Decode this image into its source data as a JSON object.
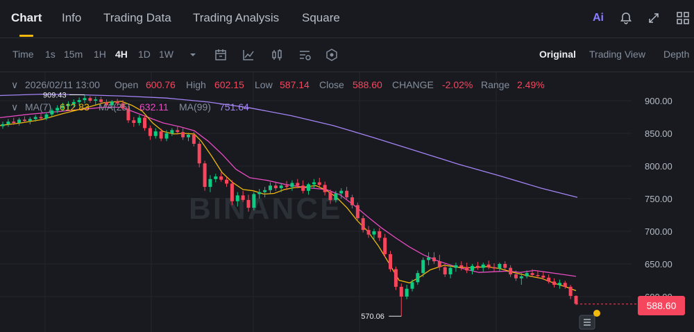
{
  "header": {
    "tabs": [
      {
        "label": "Chart"
      },
      {
        "label": "Info"
      },
      {
        "label": "Trading Data"
      },
      {
        "label": "Trading Analysis"
      },
      {
        "label": "Square"
      }
    ],
    "ai_label": "Ai",
    "icons": [
      "bell-icon",
      "expand-icon",
      "grid-layout-icon"
    ]
  },
  "toolbar": {
    "timeframes": [
      "Time",
      "1s",
      "15m",
      "1H",
      "4H",
      "1D",
      "1W"
    ],
    "active_timeframe": "4H",
    "tools": [
      "chevron-down-icon",
      "calendar-icon",
      "indicator-icon",
      "candle-type-icon",
      "settings-icon",
      "hexagon-icon"
    ],
    "views": [
      "Original",
      "Trading View",
      "Depth"
    ],
    "active_view": "Original"
  },
  "ohlc": {
    "datetime": "2026/02/11 13:00",
    "open_label": "Open",
    "open": "600.76",
    "high_label": "High",
    "high": "602.15",
    "low_label": "Low",
    "low": "587.14",
    "close_label": "Close",
    "close": "588.60",
    "change_label": "CHANGE",
    "change": "-2.02%",
    "range_label": "Range",
    "range": "2.49%"
  },
  "ma": {
    "ma7_label": "MA(7)",
    "ma7": "612.83",
    "ma25_label": "MA(25)",
    "ma25": "632.11",
    "ma99_label": "MA(99)",
    "ma99": "751.64"
  },
  "watermark": "BINANCE",
  "colors": {
    "up": "#0ecb81",
    "down": "#f6465d",
    "ma7": "#f0b90b",
    "ma25": "#e94bc1",
    "ma99": "#a584f5",
    "accent": "#f0b90b"
  },
  "chart_data": {
    "type": "candlestick",
    "y_ticks": [
      "900.00",
      "850.00",
      "800.00",
      "750.00",
      "700.00",
      "650.00",
      "600.00"
    ],
    "ylim": [
      560,
      920
    ],
    "current_price": "588.60",
    "high_annotation": "909.43",
    "low_annotation": "570.06",
    "candles": [
      [
        861,
        868,
        857,
        864
      ],
      [
        864,
        872,
        860,
        868
      ],
      [
        868,
        874,
        863,
        866
      ],
      [
        866,
        874,
        862,
        871
      ],
      [
        871,
        876,
        866,
        869
      ],
      [
        869,
        875,
        864,
        872
      ],
      [
        872,
        878,
        868,
        875
      ],
      [
        875,
        880,
        870,
        873
      ],
      [
        873,
        882,
        870,
        879
      ],
      [
        879,
        888,
        876,
        885
      ],
      [
        885,
        893,
        881,
        889
      ],
      [
        889,
        897,
        884,
        892
      ],
      [
        892,
        899,
        887,
        895
      ],
      [
        895,
        902,
        890,
        898
      ],
      [
        898,
        905,
        893,
        901
      ],
      [
        901,
        909,
        896,
        904
      ],
      [
        904,
        907,
        897,
        900
      ],
      [
        900,
        906,
        894,
        902
      ],
      [
        902,
        906,
        895,
        898
      ],
      [
        898,
        902,
        890,
        893
      ],
      [
        893,
        901,
        890,
        899
      ],
      [
        899,
        903,
        892,
        896
      ],
      [
        896,
        901,
        885,
        888
      ],
      [
        888,
        892,
        866,
        870
      ],
      [
        870,
        875,
        860,
        866
      ],
      [
        866,
        878,
        862,
        874
      ],
      [
        874,
        877,
        854,
        858
      ],
      [
        858,
        862,
        840,
        846
      ],
      [
        846,
        858,
        842,
        853
      ],
      [
        853,
        857,
        838,
        842
      ],
      [
        842,
        855,
        838,
        850
      ],
      [
        850,
        858,
        846,
        855
      ],
      [
        855,
        860,
        848,
        852
      ],
      [
        852,
        858,
        840,
        844
      ],
      [
        844,
        851,
        838,
        848
      ],
      [
        848,
        852,
        830,
        834
      ],
      [
        834,
        838,
        798,
        804
      ],
      [
        804,
        808,
        762,
        768
      ],
      [
        768,
        786,
        760,
        780
      ],
      [
        780,
        788,
        775,
        784
      ],
      [
        784,
        790,
        776,
        779
      ],
      [
        779,
        783,
        768,
        773
      ],
      [
        773,
        778,
        740,
        746
      ],
      [
        746,
        760,
        738,
        755
      ],
      [
        755,
        762,
        745,
        748
      ],
      [
        748,
        756,
        730,
        736
      ],
      [
        736,
        760,
        732,
        757
      ],
      [
        757,
        765,
        750,
        760
      ],
      [
        760,
        768,
        752,
        763
      ],
      [
        763,
        775,
        758,
        770
      ],
      [
        770,
        776,
        762,
        766
      ],
      [
        766,
        774,
        760,
        770
      ],
      [
        770,
        777,
        763,
        768
      ],
      [
        768,
        778,
        762,
        774
      ],
      [
        774,
        780,
        766,
        770
      ],
      [
        770,
        778,
        758,
        762
      ],
      [
        762,
        774,
        756,
        772
      ],
      [
        772,
        780,
        766,
        775
      ],
      [
        775,
        782,
        768,
        771
      ],
      [
        771,
        776,
        755,
        760
      ],
      [
        760,
        764,
        742,
        748
      ],
      [
        748,
        762,
        744,
        758
      ],
      [
        758,
        766,
        750,
        762
      ],
      [
        762,
        768,
        748,
        752
      ],
      [
        752,
        756,
        735,
        740
      ],
      [
        740,
        744,
        715,
        720
      ],
      [
        720,
        724,
        698,
        702
      ],
      [
        702,
        708,
        690,
        695
      ],
      [
        695,
        704,
        688,
        700
      ],
      [
        700,
        705,
        685,
        690
      ],
      [
        690,
        696,
        660,
        665
      ],
      [
        665,
        670,
        638,
        642
      ],
      [
        642,
        646,
        610,
        615
      ],
      [
        615,
        620,
        570,
        600
      ],
      [
        600,
        618,
        596,
        612
      ],
      [
        612,
        626,
        608,
        622
      ],
      [
        622,
        640,
        618,
        636
      ],
      [
        636,
        660,
        630,
        656
      ],
      [
        656,
        668,
        648,
        660
      ],
      [
        660,
        668,
        650,
        654
      ],
      [
        654,
        664,
        640,
        645
      ],
      [
        645,
        650,
        630,
        634
      ],
      [
        634,
        648,
        628,
        644
      ],
      [
        644,
        652,
        638,
        648
      ],
      [
        648,
        654,
        640,
        645
      ],
      [
        645,
        652,
        636,
        640
      ],
      [
        640,
        650,
        634,
        647
      ],
      [
        647,
        653,
        641,
        644
      ],
      [
        644,
        652,
        638,
        649
      ],
      [
        649,
        655,
        642,
        645
      ],
      [
        645,
        651,
        638,
        643
      ],
      [
        643,
        652,
        638,
        650
      ],
      [
        650,
        654,
        640,
        644
      ],
      [
        644,
        648,
        630,
        634
      ],
      [
        634,
        640,
        624,
        628
      ],
      [
        628,
        636,
        618,
        631
      ],
      [
        631,
        640,
        628,
        636
      ],
      [
        636,
        642,
        630,
        633
      ],
      [
        633,
        640,
        628,
        632
      ],
      [
        632,
        638,
        626,
        629
      ],
      [
        629,
        634,
        620,
        623
      ],
      [
        623,
        628,
        614,
        618
      ],
      [
        618,
        626,
        612,
        621
      ],
      [
        621,
        624,
        612,
        615
      ],
      [
        615,
        618,
        596,
        601
      ],
      [
        601,
        602,
        587,
        589
      ]
    ],
    "ma7": [
      [
        0,
        862
      ],
      [
        30,
        866
      ],
      [
        60,
        871
      ],
      [
        90,
        880
      ],
      [
        120,
        888
      ],
      [
        150,
        897
      ],
      [
        175,
        899
      ],
      [
        190,
        893
      ],
      [
        205,
        884
      ],
      [
        220,
        866
      ],
      [
        235,
        853
      ],
      [
        250,
        849
      ],
      [
        265,
        850
      ],
      [
        280,
        849
      ],
      [
        290,
        838
      ],
      [
        305,
        815
      ],
      [
        320,
        790
      ],
      [
        335,
        775
      ],
      [
        350,
        764
      ],
      [
        365,
        762
      ],
      [
        380,
        757
      ],
      [
        395,
        758
      ],
      [
        410,
        764
      ],
      [
        425,
        767
      ],
      [
        440,
        768
      ],
      [
        455,
        770
      ],
      [
        470,
        763
      ],
      [
        485,
        752
      ],
      [
        500,
        736
      ],
      [
        515,
        716
      ],
      [
        530,
        700
      ],
      [
        545,
        678
      ],
      [
        560,
        652
      ],
      [
        575,
        625
      ],
      [
        590,
        621
      ],
      [
        605,
        630
      ],
      [
        620,
        641
      ],
      [
        640,
        648
      ],
      [
        660,
        645
      ],
      [
        680,
        644
      ],
      [
        700,
        646
      ],
      [
        720,
        643
      ],
      [
        740,
        637
      ],
      [
        760,
        632
      ],
      [
        780,
        628
      ],
      [
        800,
        620
      ],
      [
        815,
        615
      ],
      [
        830,
        609
      ]
    ],
    "ma25": [
      [
        0,
        874
      ],
      [
        40,
        879
      ],
      [
        80,
        883
      ],
      [
        120,
        887
      ],
      [
        150,
        890
      ],
      [
        175,
        890
      ],
      [
        190,
        884
      ],
      [
        210,
        876
      ],
      [
        235,
        866
      ],
      [
        260,
        860
      ],
      [
        280,
        854
      ],
      [
        300,
        838
      ],
      [
        320,
        818
      ],
      [
        340,
        795
      ],
      [
        360,
        782
      ],
      [
        385,
        778
      ],
      [
        410,
        772
      ],
      [
        440,
        767
      ],
      [
        470,
        764
      ],
      [
        490,
        756
      ],
      [
        510,
        740
      ],
      [
        530,
        722
      ],
      [
        550,
        705
      ],
      [
        570,
        690
      ],
      [
        590,
        676
      ],
      [
        610,
        664
      ],
      [
        630,
        655
      ],
      [
        650,
        648
      ],
      [
        670,
        642
      ],
      [
        690,
        637
      ],
      [
        710,
        638
      ],
      [
        730,
        639
      ],
      [
        750,
        637
      ],
      [
        770,
        640
      ],
      [
        790,
        637
      ],
      [
        810,
        634
      ],
      [
        830,
        631
      ]
    ],
    "ma99": [
      [
        0,
        908
      ],
      [
        60,
        910
      ],
      [
        120,
        909
      ],
      [
        180,
        907
      ],
      [
        240,
        904
      ],
      [
        300,
        898
      ],
      [
        360,
        889
      ],
      [
        420,
        877
      ],
      [
        480,
        862
      ],
      [
        540,
        843
      ],
      [
        600,
        823
      ],
      [
        660,
        803
      ],
      [
        720,
        785
      ],
      [
        780,
        766
      ],
      [
        832,
        752
      ]
    ]
  }
}
